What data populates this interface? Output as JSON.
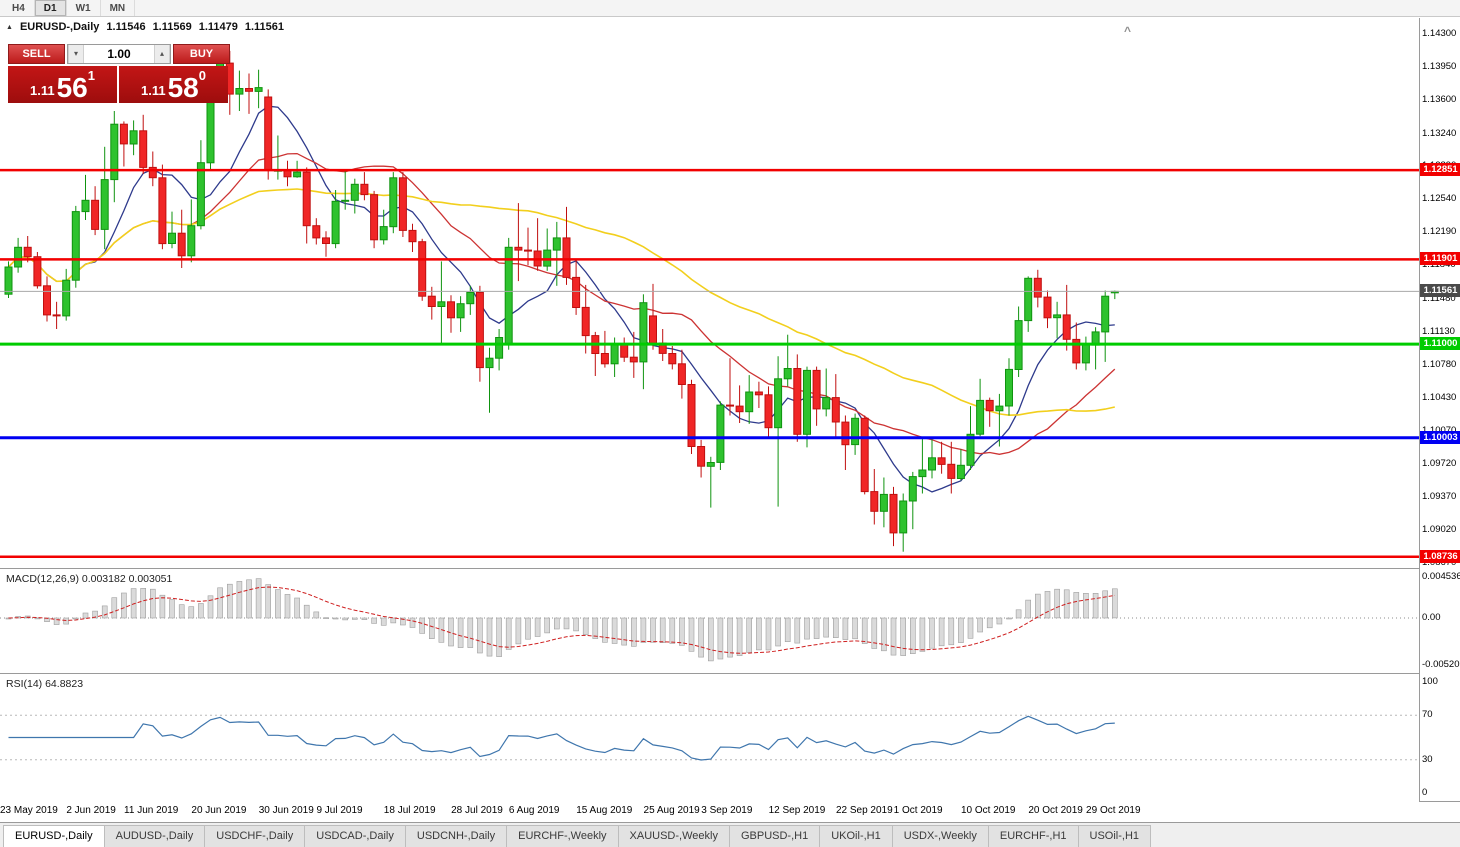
{
  "icons": {
    "symbol_marker": "▲",
    "collapse": "^",
    "volume_up": "▴",
    "volume_down": "▾"
  },
  "toolbar": {
    "timeframes": [
      {
        "label": "H4",
        "active": false
      },
      {
        "label": "D1",
        "active": true
      },
      {
        "label": "W1",
        "active": false
      },
      {
        "label": "MN",
        "active": false
      }
    ]
  },
  "header": {
    "title": "EURUSD-,Daily",
    "open": "1.11546",
    "high": "1.11569",
    "low": "1.11479",
    "close": "1.11561"
  },
  "trade_panel": {
    "sell_label": "SELL",
    "buy_label": "BUY",
    "volume": "1.00",
    "sell_price_main": "1.11",
    "sell_price_big": "56",
    "sell_price_sup": "1",
    "buy_price_main": "1.11",
    "buy_price_big": "58",
    "buy_price_sup": "0"
  },
  "price_axis": {
    "max": 1.143,
    "min": 1.0867,
    "labels": [
      "1.14300",
      "1.13950",
      "1.13600",
      "1.13240",
      "1.12890",
      "1.12540",
      "1.12190",
      "1.11840",
      "1.11480",
      "1.11130",
      "1.10780",
      "1.10430",
      "1.10070",
      "1.09720",
      "1.09370",
      "1.09020",
      "1.08670"
    ]
  },
  "levels": [
    {
      "value": 1.12851,
      "label": "1.12851",
      "color": "#f20000",
      "width": 2.5
    },
    {
      "value": 1.11901,
      "label": "1.11901",
      "color": "#f20000",
      "width": 2.5
    },
    {
      "value": 1.11,
      "label": "1.11000",
      "color": "#00cc00",
      "width": 3
    },
    {
      "value": 1.10003,
      "label": "1.10003",
      "color": "#0000f2",
      "width": 3
    },
    {
      "value": 1.08736,
      "label": "1.08736",
      "color": "#f20000",
      "width": 2.5
    }
  ],
  "current_price": {
    "value": 1.11561,
    "label": "1.11561",
    "line_color": "#a8a8a8",
    "tag_color": "#4a4a4a"
  },
  "macd": {
    "label": "MACD(12,26,9) 0.003182 0.003051",
    "axis": [
      "0.004536",
      "0.00",
      "-0.005205"
    ],
    "max": 0.004536,
    "min": -0.005205,
    "bar_fill": "#dadada",
    "bar_stroke": "#9e9e9e",
    "signal_color": "#cf2020"
  },
  "rsi": {
    "label": "RSI(14) 64.8823",
    "axis": [
      "100",
      "70",
      "30",
      "0"
    ],
    "levels": [
      70,
      30
    ],
    "line_color": "#3f76ad"
  },
  "x_axis": {
    "labels": [
      {
        "i": 0,
        "t": "23 May 2019"
      },
      {
        "i": 7,
        "t": "2 Jun 2019"
      },
      {
        "i": 13,
        "t": "11 Jun 2019"
      },
      {
        "i": 20,
        "t": "20 Jun 2019"
      },
      {
        "i": 27,
        "t": "30 Jun 2019"
      },
      {
        "i": 33,
        "t": "9 Jul 2019"
      },
      {
        "i": 40,
        "t": "18 Jul 2019"
      },
      {
        "i": 47,
        "t": "28 Jul 2019"
      },
      {
        "i": 53,
        "t": "6 Aug 2019"
      },
      {
        "i": 60,
        "t": "15 Aug 2019"
      },
      {
        "i": 67,
        "t": "25 Aug 2019"
      },
      {
        "i": 73,
        "t": "3 Sep 2019"
      },
      {
        "i": 80,
        "t": "12 Sep 2019"
      },
      {
        "i": 87,
        "t": "22 Sep 2019"
      },
      {
        "i": 93,
        "t": "1 Oct 2019"
      },
      {
        "i": 100,
        "t": "10 Oct 2019"
      },
      {
        "i": 107,
        "t": "20 Oct 2019"
      },
      {
        "i": 113,
        "t": "29 Oct 2019"
      }
    ]
  },
  "tabs": [
    {
      "label": "EURUSD-,Daily",
      "active": true
    },
    {
      "label": "AUDUSD-,Daily",
      "active": false
    },
    {
      "label": "USDCHF-,Daily",
      "active": false
    },
    {
      "label": "USDCAD-,Daily",
      "active": false
    },
    {
      "label": "USDCNH-,Daily",
      "active": false
    },
    {
      "label": "EURCHF-,Weekly",
      "active": false
    },
    {
      "label": "XAUUSD-,Weekly",
      "active": false
    },
    {
      "label": "GBPUSD-,H1",
      "active": false
    },
    {
      "label": "UKOil-,H1",
      "active": false
    },
    {
      "label": "USDX-,Weekly",
      "active": false
    },
    {
      "label": "EURCHF-,H1",
      "active": false
    },
    {
      "label": "USOil-,H1",
      "active": false
    }
  ],
  "chart_data": {
    "type": "candlestick",
    "symbol": "EURUSD",
    "timeframe": "Daily",
    "up_fill": "#2ec22e",
    "up_border": "#0f930f",
    "down_fill": "#f02626",
    "down_border": "#c00f0f",
    "ma": [
      {
        "name": "fast",
        "period": 8,
        "color": "#2e3a8c",
        "width": 1.3
      },
      {
        "name": "medium",
        "period": 20,
        "color": "#cc3333",
        "width": 1.3
      },
      {
        "name": "slow",
        "period": 45,
        "color": "#f2cf1d",
        "width": 1.6
      }
    ],
    "candles": [
      [
        1.1153,
        1.1188,
        1.1149,
        1.1182
      ],
      [
        1.1182,
        1.1213,
        1.1176,
        1.1203
      ],
      [
        1.1203,
        1.1215,
        1.1187,
        1.1193
      ],
      [
        1.1193,
        1.1198,
        1.1159,
        1.1162
      ],
      [
        1.1162,
        1.1172,
        1.1124,
        1.1131
      ],
      [
        1.1131,
        1.1145,
        1.1116,
        1.113
      ],
      [
        1.113,
        1.118,
        1.1125,
        1.1168
      ],
      [
        1.1168,
        1.1247,
        1.116,
        1.1241
      ],
      [
        1.1241,
        1.128,
        1.1232,
        1.1253
      ],
      [
        1.1253,
        1.1268,
        1.1216,
        1.1222
      ],
      [
        1.1222,
        1.131,
        1.1201,
        1.1275
      ],
      [
        1.1275,
        1.1348,
        1.1251,
        1.1334
      ],
      [
        1.1334,
        1.1337,
        1.1289,
        1.1313
      ],
      [
        1.1313,
        1.1338,
        1.1301,
        1.1327
      ],
      [
        1.1327,
        1.1344,
        1.1281,
        1.1288
      ],
      [
        1.1288,
        1.1305,
        1.1268,
        1.1277
      ],
      [
        1.1277,
        1.1291,
        1.1201,
        1.1207
      ],
      [
        1.1207,
        1.1241,
        1.1202,
        1.1218
      ],
      [
        1.1218,
        1.1243,
        1.1181,
        1.1194
      ],
      [
        1.1194,
        1.1254,
        1.1187,
        1.1226
      ],
      [
        1.1226,
        1.1317,
        1.1222,
        1.1293
      ],
      [
        1.1293,
        1.1378,
        1.1285,
        1.1368
      ],
      [
        1.1368,
        1.1409,
        1.1358,
        1.1399
      ],
      [
        1.1399,
        1.1412,
        1.1344,
        1.1366
      ],
      [
        1.1366,
        1.1391,
        1.1348,
        1.1372
      ],
      [
        1.1372,
        1.1388,
        1.1345,
        1.1369
      ],
      [
        1.1369,
        1.1392,
        1.1351,
        1.1373
      ],
      [
        1.1363,
        1.1371,
        1.1275,
        1.1285
      ],
      [
        1.1285,
        1.1322,
        1.1275,
        1.1285
      ],
      [
        1.1285,
        1.1295,
        1.1268,
        1.1278
      ],
      [
        1.1278,
        1.1295,
        1.1277,
        1.1283
      ],
      [
        1.1283,
        1.1288,
        1.1207,
        1.1226
      ],
      [
        1.1226,
        1.1234,
        1.1206,
        1.1213
      ],
      [
        1.1213,
        1.122,
        1.1193,
        1.1207
      ],
      [
        1.1207,
        1.1264,
        1.1202,
        1.1252
      ],
      [
        1.1252,
        1.1285,
        1.1243,
        1.1253
      ],
      [
        1.1253,
        1.1276,
        1.1239,
        1.127
      ],
      [
        1.127,
        1.1283,
        1.1253,
        1.1259
      ],
      [
        1.1259,
        1.1263,
        1.1202,
        1.1211
      ],
      [
        1.1211,
        1.1243,
        1.1206,
        1.1225
      ],
      [
        1.1225,
        1.1283,
        1.1218,
        1.1277
      ],
      [
        1.1277,
        1.1283,
        1.1214,
        1.1221
      ],
      [
        1.1221,
        1.1228,
        1.1198,
        1.1209
      ],
      [
        1.1209,
        1.1212,
        1.1146,
        1.1151
      ],
      [
        1.1151,
        1.1161,
        1.1126,
        1.114
      ],
      [
        1.114,
        1.1188,
        1.1101,
        1.1145
      ],
      [
        1.1145,
        1.1152,
        1.1112,
        1.1128
      ],
      [
        1.1128,
        1.1151,
        1.1113,
        1.1143
      ],
      [
        1.1143,
        1.1162,
        1.1131,
        1.1155
      ],
      [
        1.1155,
        1.1162,
        1.106,
        1.1075
      ],
      [
        1.1075,
        1.1096,
        1.1027,
        1.1085
      ],
      [
        1.1085,
        1.1116,
        1.1072,
        1.1107
      ],
      [
        1.11,
        1.1213,
        1.1094,
        1.1203
      ],
      [
        1.1203,
        1.125,
        1.1167,
        1.12
      ],
      [
        1.12,
        1.1224,
        1.1184,
        1.1199
      ],
      [
        1.1199,
        1.1234,
        1.1178,
        1.1183
      ],
      [
        1.1183,
        1.1223,
        1.1178,
        1.12
      ],
      [
        1.12,
        1.123,
        1.1162,
        1.1213
      ],
      [
        1.1213,
        1.1246,
        1.1163,
        1.1171
      ],
      [
        1.1171,
        1.1191,
        1.1131,
        1.1139
      ],
      [
        1.1139,
        1.1163,
        1.109,
        1.1109
      ],
      [
        1.1109,
        1.1113,
        1.1066,
        1.109
      ],
      [
        1.109,
        1.1114,
        1.1075,
        1.1079
      ],
      [
        1.1079,
        1.1107,
        1.1065,
        1.1099
      ],
      [
        1.1099,
        1.1107,
        1.1081,
        1.1086
      ],
      [
        1.1086,
        1.1113,
        1.1064,
        1.1081
      ],
      [
        1.1081,
        1.1153,
        1.1052,
        1.1144
      ],
      [
        1.113,
        1.1164,
        1.1094,
        1.1101
      ],
      [
        1.1101,
        1.1116,
        1.1082,
        1.109
      ],
      [
        1.109,
        1.1098,
        1.1073,
        1.1079
      ],
      [
        1.1079,
        1.1094,
        1.1042,
        1.1057
      ],
      [
        1.1057,
        1.1062,
        1.0983,
        1.0991
      ],
      [
        1.0991,
        1.0998,
        1.0958,
        1.097
      ],
      [
        1.097,
        1.098,
        1.0926,
        1.0974
      ],
      [
        1.0974,
        1.1039,
        1.0966,
        1.1035
      ],
      [
        1.1035,
        1.1085,
        1.1024,
        1.1034
      ],
      [
        1.1034,
        1.1056,
        1.1016,
        1.1028
      ],
      [
        1.1028,
        1.1067,
        1.1015,
        1.1049
      ],
      [
        1.1049,
        1.106,
        1.1032,
        1.1046
      ],
      [
        1.1046,
        1.1055,
        1.0999,
        1.1011
      ],
      [
        1.1011,
        1.1087,
        1.0927,
        1.1063
      ],
      [
        1.1063,
        1.111,
        1.1055,
        1.1074
      ],
      [
        1.1074,
        1.1089,
        1.0996,
        1.1004
      ],
      [
        1.1004,
        1.1076,
        1.099,
        1.1072
      ],
      [
        1.1072,
        1.1076,
        1.1013,
        1.1031
      ],
      [
        1.1031,
        1.1074,
        1.1023,
        1.1043
      ],
      [
        1.1043,
        1.1068,
        1.1,
        1.1017
      ],
      [
        1.1017,
        1.1024,
        1.0966,
        1.0993
      ],
      [
        1.0993,
        1.1026,
        1.0982,
        1.1021
      ],
      [
        1.1021,
        1.1024,
        1.094,
        1.0943
      ],
      [
        1.0943,
        1.0967,
        1.0908,
        1.0922
      ],
      [
        1.0922,
        1.0958,
        1.0905,
        1.094
      ],
      [
        1.094,
        1.0948,
        1.0885,
        1.0899
      ],
      [
        1.0899,
        1.0941,
        1.0879,
        1.0933
      ],
      [
        1.0933,
        1.0964,
        1.0903,
        1.0959
      ],
      [
        1.0959,
        1.0999,
        1.0941,
        1.0966
      ],
      [
        1.0966,
        1.0999,
        1.0957,
        1.0979
      ],
      [
        1.0979,
        1.0996,
        1.0962,
        1.0972
      ],
      [
        1.0972,
        1.0996,
        1.0941,
        1.0957
      ],
      [
        1.0957,
        1.0988,
        1.0955,
        1.0971
      ],
      [
        1.0971,
        1.1034,
        1.0966,
        1.1004
      ],
      [
        1.1004,
        1.1063,
        1.1002,
        1.104
      ],
      [
        1.104,
        1.1043,
        1.1012,
        1.1029
      ],
      [
        1.1029,
        1.1047,
        1.0991,
        1.1034
      ],
      [
        1.1034,
        1.1085,
        1.1024,
        1.1073
      ],
      [
        1.1073,
        1.114,
        1.1065,
        1.1125
      ],
      [
        1.1125,
        1.1172,
        1.1113,
        1.117
      ],
      [
        1.117,
        1.1179,
        1.1139,
        1.115
      ],
      [
        1.115,
        1.1157,
        1.1117,
        1.1128
      ],
      [
        1.1128,
        1.1145,
        1.1106,
        1.1131
      ],
      [
        1.1131,
        1.1163,
        1.1093,
        1.1105
      ],
      [
        1.1105,
        1.1123,
        1.1073,
        1.108
      ],
      [
        1.108,
        1.1108,
        1.1072,
        1.1099
      ],
      [
        1.1099,
        1.1118,
        1.1073,
        1.1113
      ],
      [
        1.1113,
        1.1157,
        1.1081,
        1.1151
      ],
      [
        1.11546,
        1.11569,
        1.11479,
        1.11561
      ]
    ]
  }
}
